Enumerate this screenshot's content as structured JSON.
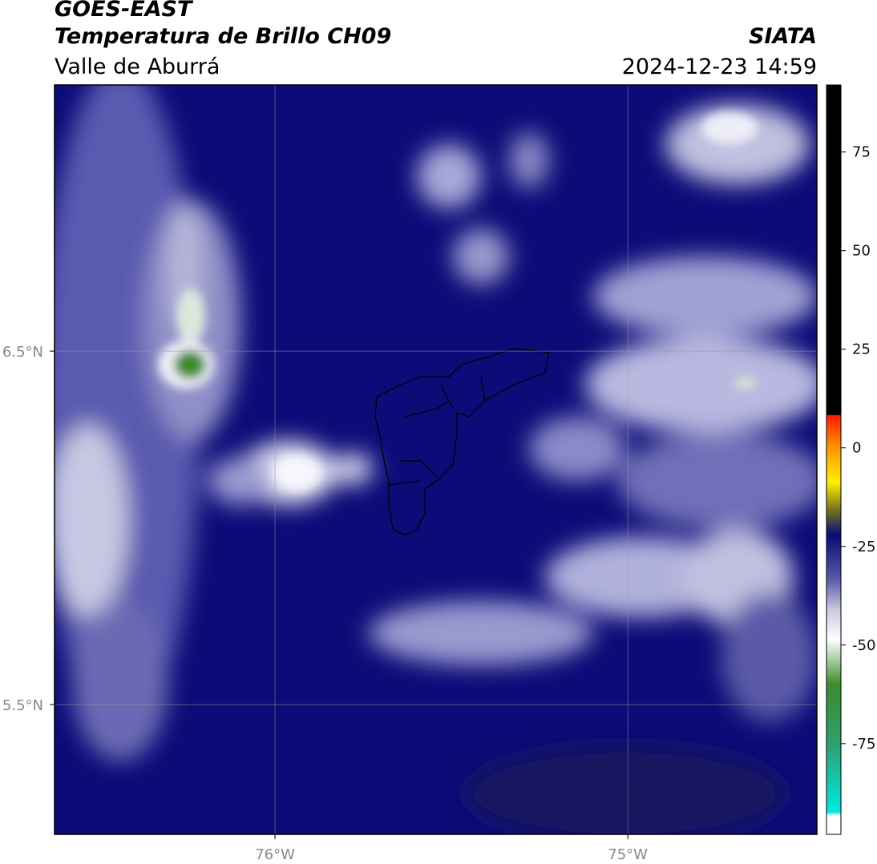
{
  "header": {
    "satellite": "GOES-EAST",
    "title": "Temperatura de Brillo CH09",
    "region": "Valle de Aburrá",
    "source": "SIATA",
    "datetime": "2024-12-23 14:59"
  },
  "map": {
    "xlim": [
      -76.625,
      -74.464
    ],
    "ylim": [
      5.133,
      7.253
    ],
    "xticks": [
      {
        "value": -76,
        "label": "76°W"
      },
      {
        "value": -75,
        "label": "75°W"
      }
    ],
    "yticks": [
      {
        "value": 6.5,
        "label": "6.5°N"
      },
      {
        "value": 5.5,
        "label": "5.5°N"
      }
    ],
    "grid": true
  },
  "colorbar": {
    "lim": [
      -98,
      92
    ],
    "ticks": [
      75,
      50,
      25,
      0,
      -25,
      -50,
      -75
    ]
  }
}
